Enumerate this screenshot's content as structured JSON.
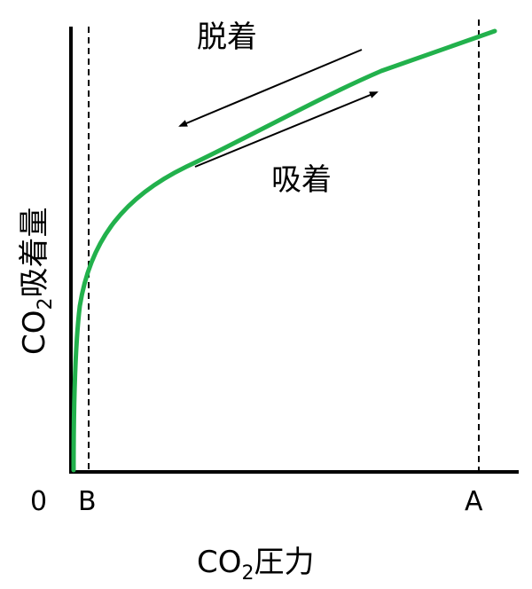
{
  "desorption_label": "脱着",
  "adsorption_label": "吸着",
  "y_axis": {
    "label": "CO2吸着量",
    "prefix": "CO",
    "subscript": "2",
    "suffix": "吸着量"
  },
  "x_axis": {
    "label": "CO2圧力",
    "prefix": "CO",
    "subscript": "2",
    "suffix": "圧力"
  },
  "tick_labels": {
    "origin": "0",
    "b": "B",
    "a": "A"
  },
  "colors": {
    "curve": "#22b14c",
    "axis": "#000000"
  }
}
